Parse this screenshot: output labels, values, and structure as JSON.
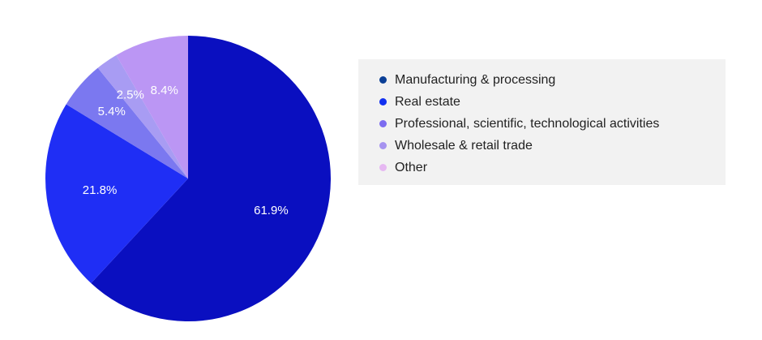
{
  "chart_data": {
    "type": "pie",
    "categories": [
      "Manufacturing & processing",
      "Real estate",
      "Professional, scientific, technological activities",
      "Wholesale & retail trade",
      "Other"
    ],
    "slices": [
      {
        "value": 61.9,
        "label": "61.9%",
        "color": "#0a0fc0"
      },
      {
        "value": 21.8,
        "label": "21.8%",
        "color": "#1f2ef5"
      },
      {
        "value": 5.4,
        "label": "5.4%",
        "color": "#7b78f0"
      },
      {
        "value": 2.5,
        "label": "2.5%",
        "color": "#a89cf3"
      },
      {
        "value": 8.4,
        "label": "8.4%",
        "color": "#bb96f4"
      }
    ],
    "legend_colors": [
      "#0b3f96",
      "#1230f0",
      "#7c6cf0",
      "#a693f0",
      "#e6b8f2"
    ],
    "start": "12 o'clock",
    "direction": "clockwise",
    "legend_position": "right"
  }
}
